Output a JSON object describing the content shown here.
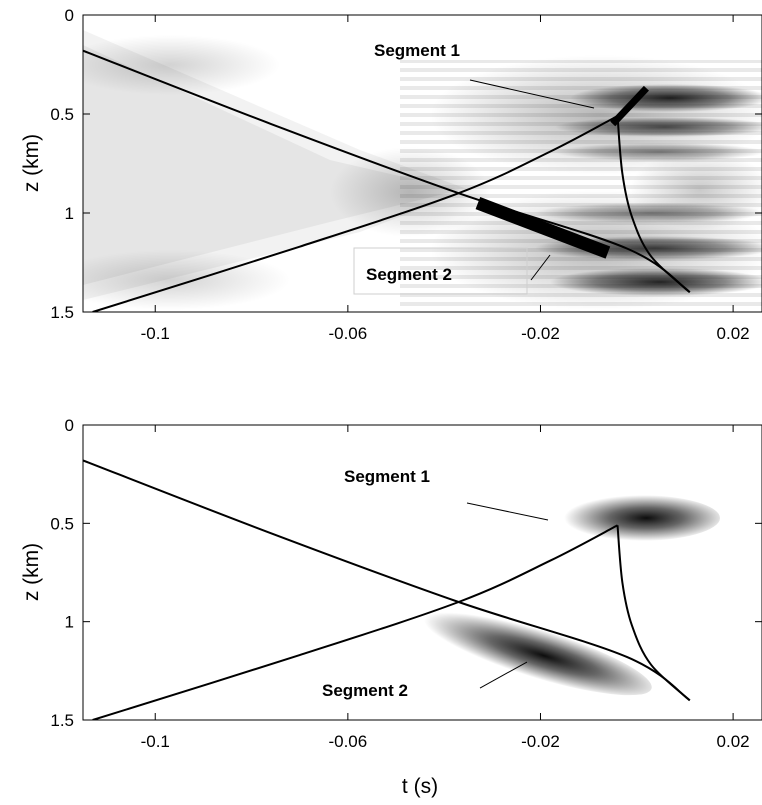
{
  "chart_data": [
    {
      "type": "heatmap",
      "title": "",
      "xlabel": "",
      "ylabel": "z (km)",
      "xlim": [
        -0.115,
        0.026
      ],
      "ylim": [
        0,
        1.5
      ],
      "y_reversed": true,
      "xticks": [
        -0.1,
        -0.06,
        -0.02,
        0.02
      ],
      "xtick_labels": [
        "-0.1",
        "-0.06",
        "-0.02",
        "0.02"
      ],
      "yticks": [
        0,
        0.5,
        1,
        1.5
      ],
      "ytick_labels": [
        "0",
        "0.5",
        "1",
        "1.5"
      ],
      "colormap": "grayscale (white = 0, black = max)",
      "curves": [
        {
          "x": [
            -0.115,
            -0.076,
            -0.037,
            -0.002,
            0.011
          ],
          "y": [
            0.18,
            0.55,
            0.9,
            1.18,
            1.4
          ]
        },
        {
          "x": [
            -0.113,
            -0.07,
            -0.037,
            -0.018,
            -0.004
          ],
          "y": [
            1.5,
            1.17,
            0.9,
            0.69,
            0.51
          ]
        },
        {
          "x": [
            -0.004,
            -0.003,
            -0.001,
            0.003,
            0.011
          ],
          "y": [
            0.51,
            0.8,
            1.02,
            1.22,
            1.4
          ]
        }
      ],
      "segments": [
        {
          "label": "Segment 1",
          "x": [
            -0.005,
            0.002
          ],
          "y": [
            0.55,
            0.37
          ]
        },
        {
          "label": "Segment 2",
          "x": [
            -0.033,
            -0.006
          ],
          "y": [
            0.95,
            1.2
          ]
        }
      ],
      "annotations": [
        "Segment 1",
        "Segment 2"
      ]
    },
    {
      "type": "heatmap",
      "title": "",
      "xlabel": "t (s)",
      "ylabel": "z (km)",
      "xlim": [
        -0.115,
        0.026
      ],
      "ylim": [
        0,
        1.5
      ],
      "y_reversed": true,
      "xticks": [
        -0.1,
        -0.06,
        -0.02,
        0.02
      ],
      "xtick_labels": [
        "-0.1",
        "-0.06",
        "-0.02",
        "0.02"
      ],
      "yticks": [
        0,
        0.5,
        1,
        1.5
      ],
      "ytick_labels": [
        "0",
        "0.5",
        "1",
        "1.5"
      ],
      "colormap": "grayscale (white = 0, black = max)",
      "curves": [
        {
          "x": [
            -0.115,
            -0.076,
            -0.037,
            -0.002,
            0.011
          ],
          "y": [
            0.18,
            0.55,
            0.9,
            1.18,
            1.4
          ]
        },
        {
          "x": [
            -0.113,
            -0.07,
            -0.037,
            -0.018,
            -0.004
          ],
          "y": [
            1.5,
            1.17,
            0.9,
            0.69,
            0.51
          ]
        },
        {
          "x": [
            -0.004,
            -0.003,
            -0.001,
            0.003,
            0.011
          ],
          "y": [
            0.51,
            0.8,
            1.02,
            1.22,
            1.4
          ]
        }
      ],
      "blobs": [
        {
          "label": "Segment 1",
          "center_x": 0.002,
          "center_y": 0.47
        },
        {
          "label": "Segment 2",
          "center_x": -0.021,
          "center_y": 1.08
        }
      ],
      "annotations": [
        "Segment 1",
        "Segment 2"
      ]
    }
  ]
}
